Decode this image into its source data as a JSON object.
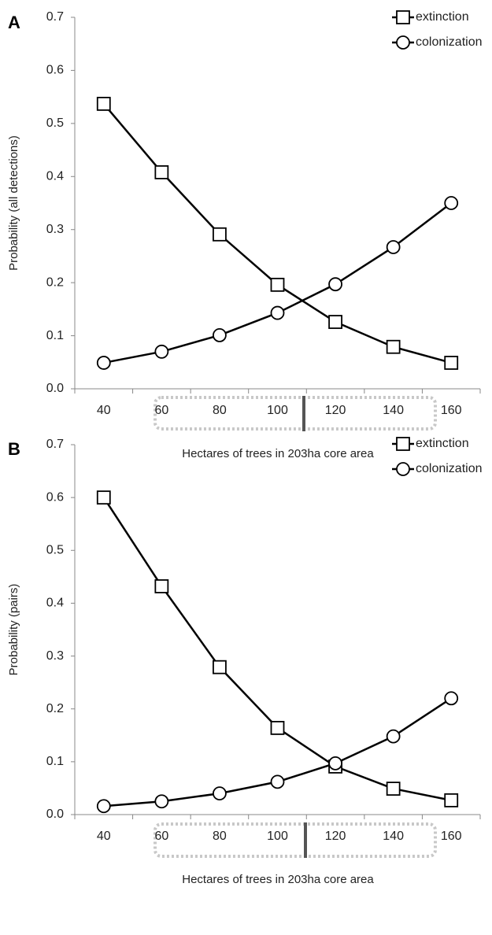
{
  "chart_data": [
    {
      "type": "line",
      "panel": "A",
      "y_label": "Probability (all detections)",
      "x_label": "Hectares of  trees in 203ha core area",
      "categories": [
        40,
        60,
        80,
        100,
        120,
        140,
        160
      ],
      "series": [
        {
          "name": "extinction",
          "color": "#000000",
          "marker": "square",
          "values": [
            0.537,
            0.408,
            0.291,
            0.196,
            0.126,
            0.079,
            0.049
          ]
        },
        {
          "name": "colonization",
          "color": "#000000",
          "marker": "circle",
          "values": [
            0.049,
            0.07,
            0.101,
            0.143,
            0.197,
            0.267,
            0.35
          ]
        }
      ],
      "ylim": [
        0,
        0.7
      ],
      "yticks": [
        {
          "value": 0,
          "label": "0.0"
        },
        0.1,
        0.2,
        0.3,
        0.4,
        0.5,
        0.6,
        0.7
      ],
      "legend": "upper right"
    },
    {
      "type": "line",
      "panel": "B",
      "y_label": "Probability (pairs)",
      "x_label": "Hectares of  trees in 203ha core area",
      "categories": [
        40,
        60,
        80,
        100,
        120,
        140,
        160
      ],
      "series": [
        {
          "name": "extinction",
          "color": "#000000",
          "marker": "square",
          "values": [
            0.6,
            0.432,
            0.279,
            0.164,
            0.091,
            0.049,
            0.027
          ]
        },
        {
          "name": "colonization",
          "color": "#000000",
          "marker": "circle",
          "values": [
            0.016,
            0.025,
            0.04,
            0.062,
            0.097,
            0.148,
            0.22
          ]
        }
      ],
      "ylim": [
        0,
        0.7
      ],
      "yticks": [
        {
          "value": 0,
          "label": "0.0"
        },
        0.1,
        0.2,
        0.3,
        0.4,
        0.5,
        0.6,
        0.7
      ],
      "legend": "upper right"
    }
  ]
}
